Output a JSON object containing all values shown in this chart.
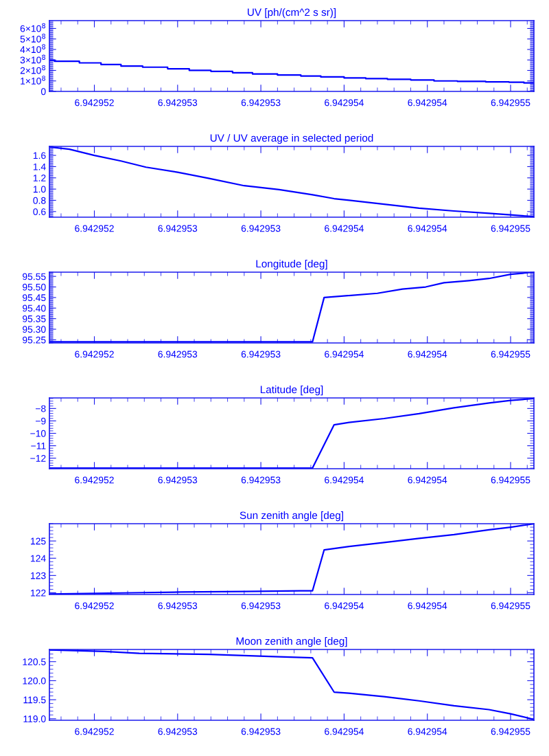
{
  "chart_data": [
    {
      "type": "step",
      "title": "UV [ph/(cm^2 s sr)]",
      "color": "#0000ff",
      "x": [
        6.94295173,
        6.94295176,
        6.94295191,
        6.94295204,
        6.94295216,
        6.94295229,
        6.94295244,
        6.94295257,
        6.9429527,
        6.94295283,
        6.94295295,
        6.9429531,
        6.94295324,
        6.94295336,
        6.9429535,
        6.94295363,
        6.94295376,
        6.9429539,
        6.94295404,
        6.94295418,
        6.94295435,
        6.94295449,
        6.94295458,
        6.94295464
      ],
      "values": [
        297000000,
        288000000,
        272000000,
        256000000,
        241000000,
        231000000,
        216000000,
        200000000,
        191000000,
        178000000,
        166000000,
        156000000,
        147000000,
        138000000,
        128000000,
        122000000,
        116000000,
        109000000,
        100000000,
        96000000,
        91000000,
        88000000,
        81000000,
        81000000
      ],
      "xlim": [
        6.94295173,
        6.94295464
      ],
      "xticks": [
        {
          "value": 6.942952,
          "label": "6.942952"
        },
        {
          "value": 6.9429525,
          "label": "6.942953"
        },
        {
          "value": 6.942953,
          "label": "6.942953"
        },
        {
          "value": 6.9429535,
          "label": "6.942954"
        },
        {
          "value": 6.942954,
          "label": "6.942954"
        },
        {
          "value": 6.9429545,
          "label": "6.942955"
        }
      ],
      "ylim": [
        0,
        675000000
      ],
      "yticks": [
        {
          "value": 0,
          "label": "0"
        },
        {
          "value": 100000000,
          "label": "1×10$^{8}$"
        },
        {
          "value": 200000000,
          "label": "2×10$^{8}$"
        },
        {
          "value": 300000000,
          "label": "3×10$^{8}$"
        },
        {
          "value": 400000000,
          "label": "4×10$^{8}$"
        },
        {
          "value": 500000000,
          "label": "5×10$^{8}$"
        },
        {
          "value": 600000000,
          "label": "6×10$^{8}$"
        }
      ]
    },
    {
      "type": "line",
      "title": "UV / UV average in selected period",
      "color": "#0000ff",
      "x": [
        6.94295173,
        6.94295185,
        6.942952,
        6.94295216,
        6.94295231,
        6.9429525,
        6.94295269,
        6.9429529,
        6.94295311,
        6.94295331,
        6.94295344,
        6.94295353,
        6.94295374,
        6.94295395,
        6.94295416,
        6.94295437,
        6.9429545,
        6.94295464
      ],
      "values": [
        1.75,
        1.71,
        1.6,
        1.5,
        1.39,
        1.3,
        1.19,
        1.06,
        0.99,
        0.9,
        0.83,
        0.8,
        0.73,
        0.66,
        0.61,
        0.57,
        0.54,
        0.51
      ],
      "xlim": [
        6.94295173,
        6.94295464
      ],
      "xticks": [
        {
          "value": 6.942952,
          "label": "6.942952"
        },
        {
          "value": 6.9429525,
          "label": "6.942953"
        },
        {
          "value": 6.942953,
          "label": "6.942953"
        },
        {
          "value": 6.9429535,
          "label": "6.942954"
        },
        {
          "value": 6.942954,
          "label": "6.942954"
        },
        {
          "value": 6.9429545,
          "label": "6.942955"
        }
      ],
      "ylim": [
        0.5,
        1.76
      ],
      "yticks": [
        {
          "value": 0.6,
          "label": "0.6"
        },
        {
          "value": 0.8,
          "label": "0.8"
        },
        {
          "value": 1.0,
          "label": "1.0"
        },
        {
          "value": 1.2,
          "label": "1.2"
        },
        {
          "value": 1.4,
          "label": "1.4"
        },
        {
          "value": 1.6,
          "label": "1.6"
        }
      ]
    },
    {
      "type": "line",
      "title": "Longitude [deg]",
      "color": "#0000ff",
      "x": [
        6.94295173,
        6.94295331,
        6.94295338,
        6.9429537,
        6.94295385,
        6.94295399,
        6.9429541,
        6.94295425,
        6.94295437,
        6.9429545,
        6.94295464
      ],
      "values": [
        95.24,
        95.24,
        95.45,
        95.47,
        95.49,
        95.5,
        95.52,
        95.53,
        95.54,
        95.56,
        95.57
      ],
      "xlim": [
        6.94295173,
        6.94295464
      ],
      "xticks": [
        {
          "value": 6.942952,
          "label": "6.942952"
        },
        {
          "value": 6.9429525,
          "label": "6.942953"
        },
        {
          "value": 6.942953,
          "label": "6.942953"
        },
        {
          "value": 6.9429535,
          "label": "6.942954"
        },
        {
          "value": 6.942954,
          "label": "6.942954"
        },
        {
          "value": 6.9429545,
          "label": "6.942955"
        }
      ],
      "ylim": [
        95.235,
        95.57
      ],
      "yticks": [
        {
          "value": 95.25,
          "label": "95.25"
        },
        {
          "value": 95.3,
          "label": "95.30"
        },
        {
          "value": 95.35,
          "label": "95.35"
        },
        {
          "value": 95.4,
          "label": "95.40"
        },
        {
          "value": 95.45,
          "label": "95.45"
        },
        {
          "value": 95.5,
          "label": "95.50"
        },
        {
          "value": 95.55,
          "label": "95.55"
        }
      ]
    },
    {
      "type": "line",
      "title": "Latitude [deg]",
      "color": "#0000ff",
      "x": [
        6.94295173,
        6.94295331,
        6.94295344,
        6.94295353,
        6.94295374,
        6.94295395,
        6.94295416,
        6.94295437,
        6.9429545,
        6.94295464
      ],
      "values": [
        -12.8,
        -12.8,
        -9.31,
        -9.12,
        -8.81,
        -8.42,
        -7.95,
        -7.56,
        -7.35,
        -7.2
      ],
      "xlim": [
        6.94295173,
        6.94295464
      ],
      "xticks": [
        {
          "value": 6.942952,
          "label": "6.942952"
        },
        {
          "value": 6.9429525,
          "label": "6.942953"
        },
        {
          "value": 6.942953,
          "label": "6.942953"
        },
        {
          "value": 6.9429535,
          "label": "6.942954"
        },
        {
          "value": 6.942954,
          "label": "6.942954"
        },
        {
          "value": 6.9429545,
          "label": "6.942955"
        }
      ],
      "ylim": [
        -12.85,
        -7.15
      ],
      "yticks": [
        {
          "value": -12,
          "label": "−12"
        },
        {
          "value": -11,
          "label": "−11"
        },
        {
          "value": -10,
          "label": "−10"
        },
        {
          "value": -9,
          "label": "−9"
        },
        {
          "value": -8,
          "label": "−8"
        }
      ]
    },
    {
      "type": "line",
      "title": "Sun zenith angle [deg]",
      "color": "#0000ff",
      "x": [
        6.94295173,
        6.94295223,
        6.94295252,
        6.9429529,
        6.94295324,
        6.94295331,
        6.94295338,
        6.94295353,
        6.94295374,
        6.94295395,
        6.94295416,
        6.94295437,
        6.9429545,
        6.94295464
      ],
      "values": [
        121.93,
        122.0,
        122.04,
        122.07,
        122.11,
        122.11,
        124.48,
        124.68,
        124.91,
        125.15,
        125.37,
        125.65,
        125.8,
        125.99
      ],
      "xlim": [
        6.94295173,
        6.94295464
      ],
      "xticks": [
        {
          "value": 6.942952,
          "label": "6.942952"
        },
        {
          "value": 6.9429525,
          "label": "6.942953"
        },
        {
          "value": 6.942953,
          "label": "6.942953"
        },
        {
          "value": 6.9429535,
          "label": "6.942954"
        },
        {
          "value": 6.942954,
          "label": "6.942954"
        },
        {
          "value": 6.9429545,
          "label": "6.942955"
        }
      ],
      "ylim": [
        121.9,
        126.0
      ],
      "yticks": [
        122,
        123,
        124,
        125
      ]
    },
    {
      "type": "line",
      "title": "Moon zenith angle [deg]",
      "color": "#0000ff",
      "x": [
        6.94295173,
        6.94295206,
        6.94295227,
        6.94295269,
        6.9429529,
        6.94295311,
        6.94295331,
        6.94295344,
        6.94295353,
        6.94295374,
        6.94295395,
        6.94295416,
        6.94295437,
        6.9429545,
        6.94295464
      ],
      "values": [
        120.81,
        120.77,
        120.72,
        120.69,
        120.66,
        120.63,
        120.6,
        119.7,
        119.67,
        119.58,
        119.47,
        119.34,
        119.24,
        119.13,
        118.98
      ],
      "xlim": [
        6.94295173,
        6.94295464
      ],
      "xticks": [
        {
          "value": 6.942952,
          "label": "6.942952"
        },
        {
          "value": 6.9429525,
          "label": "6.942953"
        },
        {
          "value": 6.942953,
          "label": "6.942953"
        },
        {
          "value": 6.9429535,
          "label": "6.942954"
        },
        {
          "value": 6.942954,
          "label": "6.942954"
        },
        {
          "value": 6.9429545,
          "label": "6.942955"
        }
      ],
      "ylim": [
        118.96,
        120.82
      ],
      "yticks": [
        {
          "value": 119.0,
          "label": "119.0"
        },
        {
          "value": 119.5,
          "label": "119.5"
        },
        {
          "value": 120.0,
          "label": "120.0"
        },
        {
          "value": 120.5,
          "label": "120.5"
        }
      ]
    }
  ]
}
